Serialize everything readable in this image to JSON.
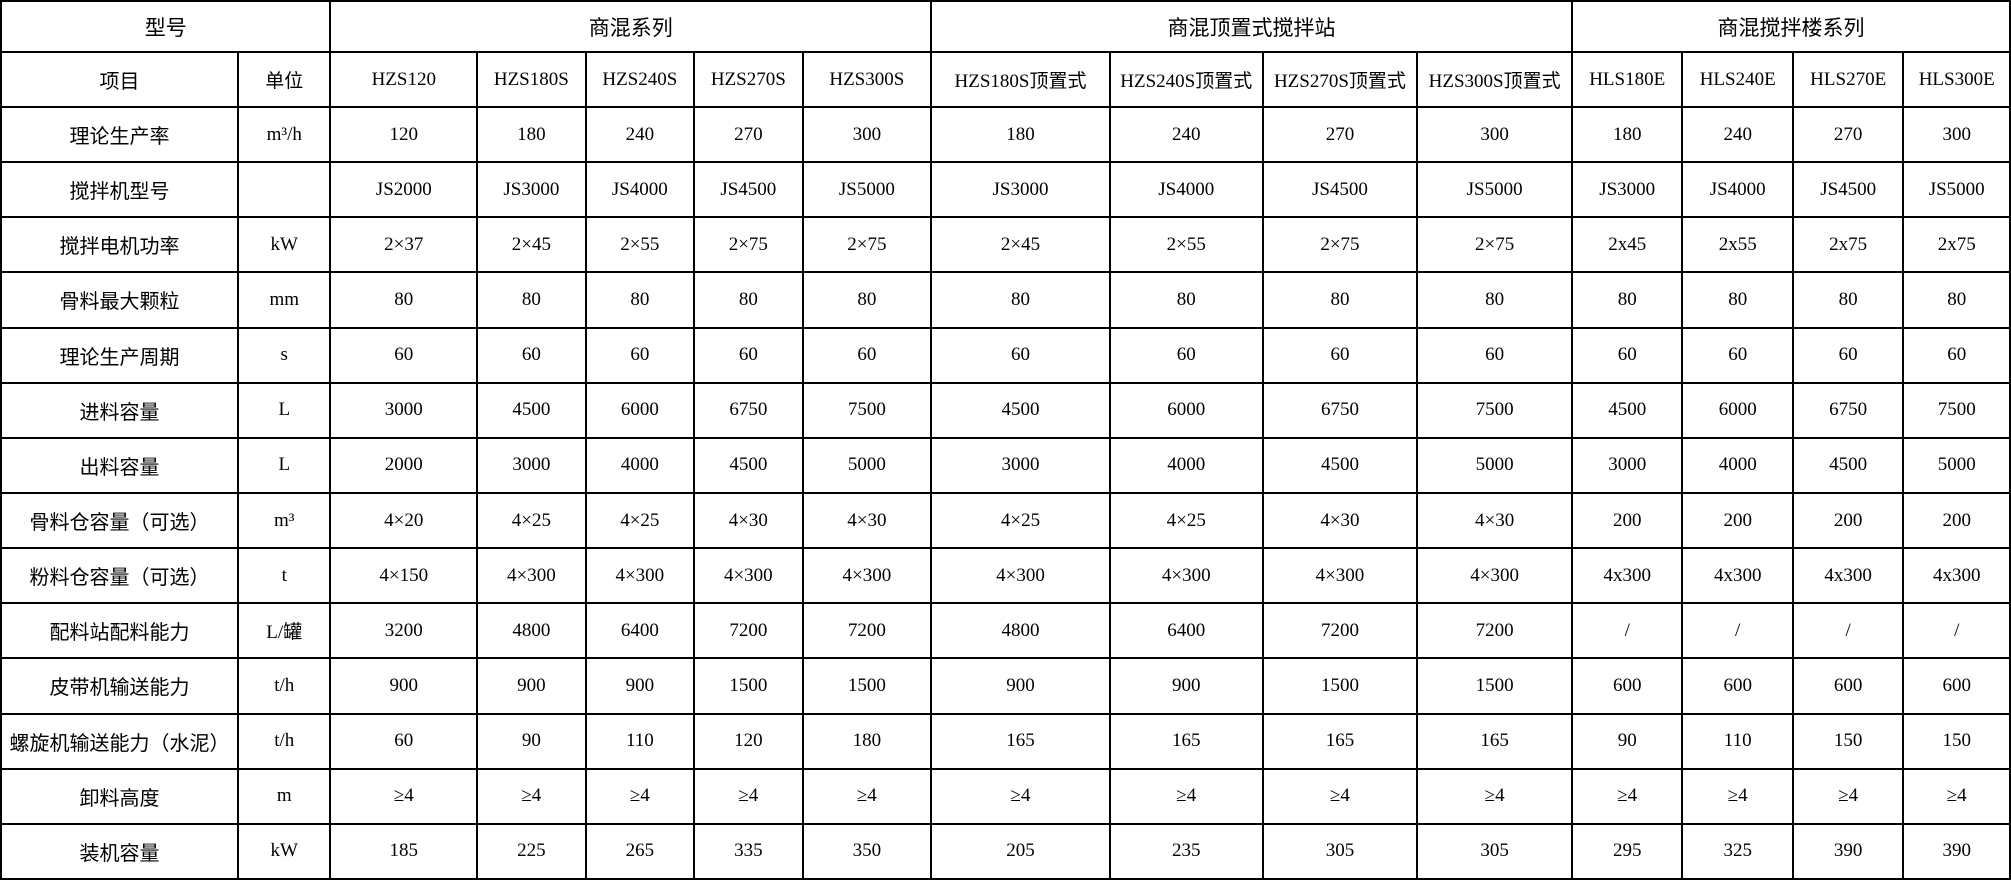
{
  "table": {
    "corner_label": "型号",
    "item_header": "项目",
    "unit_header": "单位",
    "header_groups": [
      {
        "label": "商混系列",
        "colspan": 5
      },
      {
        "label": "商混顶置式搅拌站",
        "colspan": 4
      },
      {
        "label": "商混搅拌楼系列",
        "colspan": 4
      }
    ],
    "model_columns": [
      "HZS120",
      "HZS180S",
      "HZS240S",
      "HZS270S",
      "HZS300S",
      "HZS180S顶置式",
      "HZS240S顶置式",
      "HZS270S顶置式",
      "HZS300S顶置式",
      "HLS180E",
      "HLS240E",
      "HLS270E",
      "HLS300E"
    ],
    "rows": [
      {
        "label": "理论生产率",
        "unit": "m³/h",
        "values": [
          "120",
          "180",
          "240",
          "270",
          "300",
          "180",
          "240",
          "270",
          "300",
          "180",
          "240",
          "270",
          "300"
        ]
      },
      {
        "label": "搅拌机型号",
        "unit": "",
        "values": [
          "JS2000",
          "JS3000",
          "JS4000",
          "JS4500",
          "JS5000",
          "JS3000",
          "JS4000",
          "JS4500",
          "JS5000",
          "JS3000",
          "JS4000",
          "JS4500",
          "JS5000"
        ]
      },
      {
        "label": "搅拌电机功率",
        "unit": "kW",
        "values": [
          "2×37",
          "2×45",
          "2×55",
          "2×75",
          "2×75",
          "2×45",
          "2×55",
          "2×75",
          "2×75",
          "2x45",
          "2x55",
          "2x75",
          "2x75"
        ]
      },
      {
        "label": "骨料最大颗粒",
        "unit": "mm",
        "values": [
          "80",
          "80",
          "80",
          "80",
          "80",
          "80",
          "80",
          "80",
          "80",
          "80",
          "80",
          "80",
          "80"
        ]
      },
      {
        "label": "理论生产周期",
        "unit": "s",
        "values": [
          "60",
          "60",
          "60",
          "60",
          "60",
          "60",
          "60",
          "60",
          "60",
          "60",
          "60",
          "60",
          "60"
        ]
      },
      {
        "label": "进料容量",
        "unit": "L",
        "values": [
          "3000",
          "4500",
          "6000",
          "6750",
          "7500",
          "4500",
          "6000",
          "6750",
          "7500",
          "4500",
          "6000",
          "6750",
          "7500"
        ]
      },
      {
        "label": "出料容量",
        "unit": "L",
        "values": [
          "2000",
          "3000",
          "4000",
          "4500",
          "5000",
          "3000",
          "4000",
          "4500",
          "5000",
          "3000",
          "4000",
          "4500",
          "5000"
        ]
      },
      {
        "label": "骨料仓容量（可选）",
        "unit": "m³",
        "values": [
          "4×20",
          "4×25",
          "4×25",
          "4×30",
          "4×30",
          "4×25",
          "4×25",
          "4×30",
          "4×30",
          "200",
          "200",
          "200",
          "200"
        ]
      },
      {
        "label": "粉料仓容量（可选）",
        "unit": "t",
        "values": [
          "4×150",
          "4×300",
          "4×300",
          "4×300",
          "4×300",
          "4×300",
          "4×300",
          "4×300",
          "4×300",
          "4x300",
          "4x300",
          "4x300",
          "4x300"
        ]
      },
      {
        "label": "配料站配料能力",
        "unit": "L/罐",
        "values": [
          "3200",
          "4800",
          "6400",
          "7200",
          "7200",
          "4800",
          "6400",
          "7200",
          "7200",
          "/",
          "/",
          "/",
          "/"
        ]
      },
      {
        "label": "皮带机输送能力",
        "unit": "t/h",
        "values": [
          "900",
          "900",
          "900",
          "1500",
          "1500",
          "900",
          "900",
          "1500",
          "1500",
          "600",
          "600",
          "600",
          "600"
        ]
      },
      {
        "label": "螺旋机输送能力（水泥）",
        "unit": "t/h",
        "values": [
          "60",
          "90",
          "110",
          "120",
          "180",
          "165",
          "165",
          "165",
          "165",
          "90",
          "110",
          "150",
          "150"
        ]
      },
      {
        "label": "卸料高度",
        "unit": "m",
        "values": [
          "≥4",
          "≥4",
          "≥4",
          "≥4",
          "≥4",
          "≥4",
          "≥4",
          "≥4",
          "≥4",
          "≥4",
          "≥4",
          "≥4",
          "≥4"
        ]
      },
      {
        "label": "装机容量",
        "unit": "kW",
        "values": [
          "185",
          "225",
          "265",
          "335",
          "350",
          "205",
          "235",
          "305",
          "305",
          "295",
          "325",
          "390",
          "390"
        ]
      }
    ]
  }
}
